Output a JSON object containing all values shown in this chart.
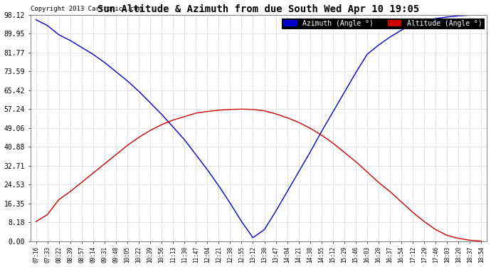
{
  "title": "Sun Altitude & Azimuth from due South Wed Apr 10 19:05",
  "copyright": "Copyright 2013 Cartronics.com",
  "background_color": "#ffffff",
  "plot_bg_color": "#ffffff",
  "grid_color": "#cccccc",
  "azimuth_color": "#0000cc",
  "altitude_color": "#cc0000",
  "ylim": [
    0.0,
    98.12
  ],
  "yticks": [
    0.0,
    8.18,
    16.35,
    24.53,
    32.71,
    40.88,
    49.06,
    57.24,
    65.42,
    73.59,
    81.77,
    89.95,
    98.12
  ],
  "x_labels": [
    "07:16",
    "07:33",
    "08:22",
    "08:39",
    "08:57",
    "09:14",
    "09:31",
    "09:48",
    "10:05",
    "10:22",
    "10:39",
    "10:56",
    "11:13",
    "11:30",
    "11:47",
    "12:04",
    "12:21",
    "12:38",
    "12:55",
    "13:12",
    "13:30",
    "13:47",
    "14:04",
    "14:21",
    "14:38",
    "14:55",
    "15:12",
    "15:29",
    "15:46",
    "16:03",
    "16:20",
    "16:37",
    "16:54",
    "17:12",
    "17:29",
    "17:46",
    "18:03",
    "18:20",
    "18:37",
    "18:54"
  ],
  "azimuth_values": [
    96.0,
    93.5,
    89.5,
    87.0,
    84.0,
    81.0,
    77.5,
    73.5,
    69.5,
    65.0,
    60.0,
    55.0,
    49.5,
    44.0,
    37.5,
    31.0,
    24.0,
    16.5,
    8.5,
    1.5,
    5.0,
    13.0,
    21.5,
    30.0,
    38.5,
    47.5,
    56.0,
    64.5,
    73.0,
    81.0,
    85.0,
    88.5,
    91.5,
    94.0,
    95.5,
    96.5,
    97.2,
    97.7,
    98.0,
    98.12
  ],
  "altitude_values": [
    8.5,
    11.5,
    18.0,
    21.5,
    25.5,
    29.5,
    33.5,
    37.5,
    41.5,
    45.0,
    48.0,
    50.5,
    52.5,
    54.0,
    55.5,
    56.2,
    56.8,
    57.1,
    57.24,
    57.1,
    56.5,
    55.2,
    53.5,
    51.5,
    49.0,
    46.0,
    42.5,
    38.5,
    34.5,
    30.0,
    25.5,
    21.5,
    17.0,
    12.5,
    8.5,
    5.0,
    2.5,
    1.2,
    0.4,
    0.0
  ],
  "legend_azimuth_label": "Azimuth (Angle °)",
  "legend_altitude_label": "Altitude (Angle °)"
}
